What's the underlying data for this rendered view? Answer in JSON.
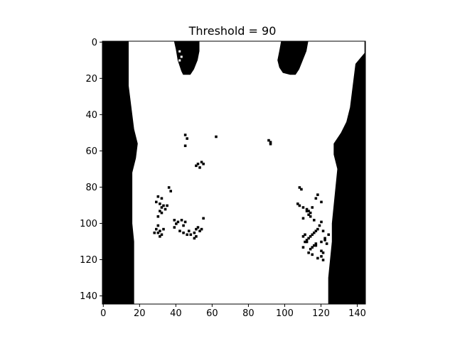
{
  "chart_data": {
    "type": "heatmap",
    "title": "Threshold = 90",
    "image_shape": [
      145,
      145
    ],
    "colormap": {
      "low": "#000000",
      "high": "#ffffff"
    },
    "x_ticks": [
      0,
      20,
      40,
      60,
      80,
      100,
      120,
      140
    ],
    "y_ticks": [
      0,
      20,
      40,
      60,
      80,
      100,
      120,
      140
    ],
    "xlim": [
      -0.5,
      144.5
    ],
    "ylim": [
      144.5,
      -0.5
    ],
    "grid": false,
    "black_regions": {
      "left_torso_edge": [
        [
          0,
          14
        ],
        [
          8,
          14
        ],
        [
          16,
          14
        ],
        [
          24,
          14
        ],
        [
          32,
          15
        ],
        [
          40,
          16
        ],
        [
          48,
          17
        ],
        [
          56,
          19
        ],
        [
          64,
          18
        ],
        [
          72,
          16
        ],
        [
          80,
          16
        ],
        [
          90,
          16
        ],
        [
          100,
          16
        ],
        [
          110,
          17
        ],
        [
          120,
          17
        ],
        [
          130,
          17
        ],
        [
          144,
          17
        ]
      ],
      "right_torso_edge": [
        [
          0,
          144
        ],
        [
          6,
          144
        ],
        [
          12,
          139
        ],
        [
          20,
          138
        ],
        [
          28,
          137
        ],
        [
          36,
          136
        ],
        [
          44,
          134
        ],
        [
          50,
          131
        ],
        [
          56,
          127
        ],
        [
          62,
          127
        ],
        [
          70,
          129
        ],
        [
          80,
          128
        ],
        [
          90,
          127
        ],
        [
          100,
          126
        ],
        [
          110,
          126
        ],
        [
          120,
          125
        ],
        [
          130,
          124
        ],
        [
          138,
          124
        ],
        [
          144,
          124
        ]
      ],
      "top_center_blob": [
        [
          0,
          39
        ],
        [
          4,
          40
        ],
        [
          10,
          41
        ],
        [
          16,
          43
        ],
        [
          18,
          44
        ],
        [
          18,
          48
        ],
        [
          15,
          50
        ],
        [
          10,
          52
        ],
        [
          5,
          53
        ],
        [
          0,
          53
        ]
      ],
      "top_right_blob": [
        [
          0,
          98
        ],
        [
          5,
          97
        ],
        [
          10,
          96
        ],
        [
          14,
          97
        ],
        [
          17,
          99
        ],
        [
          18,
          103
        ],
        [
          18,
          106
        ],
        [
          15,
          108
        ],
        [
          10,
          110
        ],
        [
          5,
          112
        ],
        [
          0,
          113
        ]
      ],
      "bottom_right_strip": [
        [
          126,
          125
        ],
        [
          132,
          124
        ],
        [
          138,
          124
        ],
        [
          144,
          124
        ],
        [
          144,
          135
        ],
        [
          126,
          135
        ]
      ]
    },
    "speckles": [
      [
        51,
        45
      ],
      [
        53,
        46
      ],
      [
        57,
        45
      ],
      [
        52,
        62
      ],
      [
        54,
        91
      ],
      [
        56,
        92
      ],
      [
        55,
        92
      ],
      [
        67,
        52
      ],
      [
        68,
        51
      ],
      [
        66,
        54
      ],
      [
        67,
        55
      ],
      [
        69,
        53
      ],
      [
        80,
        36
      ],
      [
        82,
        37
      ],
      [
        85,
        30
      ],
      [
        86,
        32
      ],
      [
        88,
        29
      ],
      [
        89,
        31
      ],
      [
        90,
        33
      ],
      [
        91,
        32
      ],
      [
        90,
        35
      ],
      [
        92,
        34
      ],
      [
        93,
        31
      ],
      [
        94,
        32
      ],
      [
        96,
        30
      ],
      [
        98,
        39
      ],
      [
        99,
        41
      ],
      [
        100,
        40
      ],
      [
        98,
        43
      ],
      [
        101,
        44
      ],
      [
        99,
        45
      ],
      [
        97,
        55
      ],
      [
        101,
        30
      ],
      [
        103,
        29
      ],
      [
        104,
        31
      ],
      [
        105,
        30
      ],
      [
        106,
        32
      ],
      [
        107,
        31
      ],
      [
        105,
        28
      ],
      [
        103,
        33
      ],
      [
        102,
        39
      ],
      [
        104,
        42
      ],
      [
        105,
        44
      ],
      [
        104,
        47
      ],
      [
        106,
        48
      ],
      [
        105,
        50
      ],
      [
        103,
        51
      ],
      [
        102,
        52
      ],
      [
        104,
        53
      ],
      [
        103,
        54
      ],
      [
        106,
        46
      ],
      [
        107,
        51
      ],
      [
        108,
        50
      ],
      [
        80,
        108
      ],
      [
        81,
        109
      ],
      [
        84,
        118
      ],
      [
        86,
        117
      ],
      [
        88,
        120
      ],
      [
        89,
        107
      ],
      [
        90,
        108
      ],
      [
        91,
        110
      ],
      [
        92,
        112
      ],
      [
        93,
        113
      ],
      [
        94,
        114
      ],
      [
        95,
        113
      ],
      [
        96,
        114
      ],
      [
        97,
        110
      ],
      [
        98,
        116
      ],
      [
        99,
        120
      ],
      [
        101,
        119
      ],
      [
        103,
        118
      ],
      [
        104,
        117
      ],
      [
        105,
        116
      ],
      [
        106,
        115
      ],
      [
        107,
        114
      ],
      [
        108,
        113
      ],
      [
        109,
        112
      ],
      [
        110,
        111
      ],
      [
        111,
        117
      ],
      [
        112,
        116
      ],
      [
        113,
        115
      ],
      [
        114,
        114
      ],
      [
        115,
        120
      ],
      [
        116,
        121
      ],
      [
        104,
        121
      ],
      [
        106,
        124
      ],
      [
        108,
        122
      ],
      [
        109,
        122
      ],
      [
        110,
        120
      ],
      [
        111,
        123
      ],
      [
        112,
        117
      ],
      [
        113,
        110
      ],
      [
        110,
        112
      ],
      [
        107,
        110
      ],
      [
        106,
        111
      ],
      [
        93,
        112
      ],
      [
        91,
        115
      ],
      [
        118,
        120
      ],
      [
        120,
        121
      ],
      [
        119,
        118
      ],
      [
        117,
        115
      ],
      [
        116,
        113
      ]
    ],
    "white_specks": [
      [
        5,
        42
      ],
      [
        8,
        43
      ],
      [
        10,
        42
      ]
    ]
  }
}
